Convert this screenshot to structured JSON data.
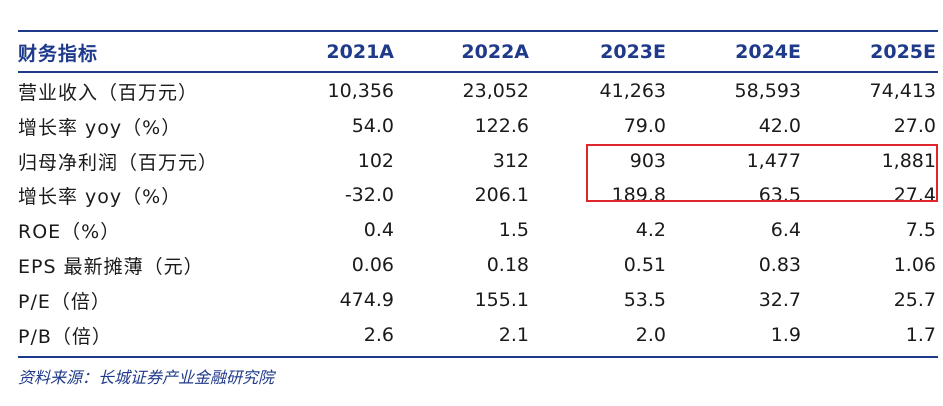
{
  "table": {
    "header": [
      "财务指标",
      "2021A",
      "2022A",
      "2023E",
      "2024E",
      "2025E"
    ],
    "rows": [
      {
        "label": "营业收入（百万元）",
        "values": [
          "10,356",
          "23,052",
          "41,263",
          "58,593",
          "74,413"
        ]
      },
      {
        "label": "增长率 yoy（%）",
        "values": [
          "54.0",
          "122.6",
          "79.0",
          "42.0",
          "27.0"
        ]
      },
      {
        "label": "归母净利润（百万元）",
        "values": [
          "102",
          "312",
          "903",
          "1,477",
          "1,881"
        ]
      },
      {
        "label": "增长率 yoy（%）",
        "values": [
          "-32.0",
          "206.1",
          "189.8",
          "63.5",
          "27.4"
        ]
      },
      {
        "label": "ROE（%）",
        "values": [
          "0.4",
          "1.5",
          "4.2",
          "6.4",
          "7.5"
        ]
      },
      {
        "label": "EPS 最新摊薄（元）",
        "values": [
          "0.06",
          "0.18",
          "0.51",
          "0.83",
          "1.06"
        ]
      },
      {
        "label": "P/E（倍）",
        "values": [
          "474.9",
          "155.1",
          "53.5",
          "32.7",
          "25.7"
        ]
      },
      {
        "label": "P/B（倍）",
        "values": [
          "2.6",
          "2.1",
          "2.0",
          "1.9",
          "1.7"
        ]
      }
    ]
  },
  "source_note": "资料来源：长城证券产业金融研究院",
  "colors": {
    "accent_blue": "#1f3a8a",
    "highlight_red": "#e0262a"
  }
}
